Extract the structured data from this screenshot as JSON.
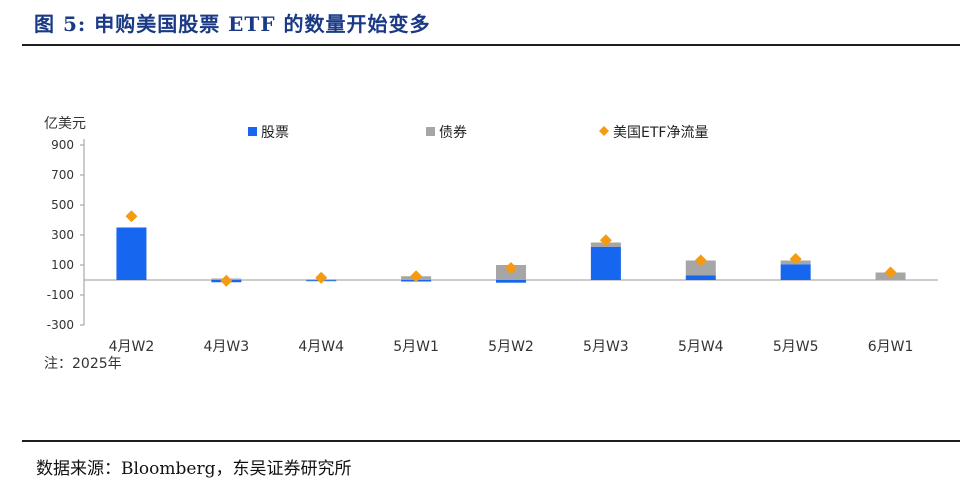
{
  "header": {
    "title": "图 5:  申购美国股票 ETF 的数量开始变多"
  },
  "footer": {
    "source": "数据来源：Bloomberg，东吴证券研究所"
  },
  "colors": {
    "stock": "#1666f0",
    "bond": "#a6a6a6",
    "flow": "#f59a11",
    "title": "#1a3a86"
  },
  "chart_data": {
    "type": "bar",
    "stacked": true,
    "unit_label": "亿美元",
    "note": "注：2025年",
    "categories": [
      "4月W2",
      "4月W3",
      "4月W4",
      "5月W1",
      "5月W2",
      "5月W3",
      "5月W4",
      "5月W5",
      "6月W1"
    ],
    "series": [
      {
        "name": "股票",
        "kind": "bar",
        "values": [
          350,
          -15,
          -8,
          -10,
          -18,
          220,
          30,
          105,
          0
        ]
      },
      {
        "name": "债券",
        "kind": "bar",
        "values": [
          0,
          10,
          5,
          25,
          100,
          30,
          100,
          25,
          50
        ]
      },
      {
        "name": "美国ETF净流量",
        "kind": "marker",
        "values": [
          425,
          -5,
          15,
          25,
          80,
          265,
          130,
          140,
          50
        ]
      }
    ],
    "ylim": [
      -300,
      900
    ],
    "yticks": [
      900,
      700,
      500,
      300,
      100,
      -100,
      -300
    ],
    "ytick_labels": [
      "900",
      "700",
      "500",
      "300",
      "100",
      "-100",
      "-300"
    ],
    "legend_position": "top"
  }
}
